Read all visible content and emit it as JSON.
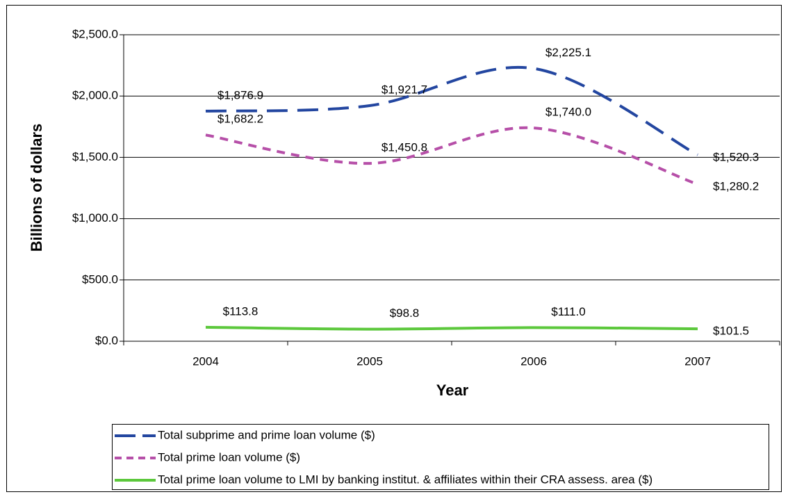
{
  "chart_data": {
    "type": "line",
    "xlabel": "Year",
    "ylabel": "Billions of dollars",
    "categories": [
      "2004",
      "2005",
      "2006",
      "2007"
    ],
    "series": [
      {
        "name": "Total subprime and prime loan volume ($)",
        "color": "#2346a0",
        "dash": "dashed",
        "values": [
          1876.9,
          1921.7,
          2225.1,
          1520.3
        ],
        "value_labels": [
          "$1,876.9",
          "$1,921.7",
          "$2,225.1",
          "$1,520.3"
        ]
      },
      {
        "name": "Total prime loan volume ($)",
        "color": "#b64fa8",
        "dash": "dotted",
        "values": [
          1682.2,
          1450.8,
          1740.0,
          1280.2
        ],
        "value_labels": [
          "$1,682.2",
          "$1,450.8",
          "$1,740.0",
          "$1,280.2"
        ]
      },
      {
        "name": "Total prime loan volume to LMI by banking institut. & affiliates within their CRA assess. area ($)",
        "color": "#5cc83c",
        "dash": "solid",
        "values": [
          113.8,
          98.8,
          111.0,
          101.5
        ],
        "value_labels": [
          "$113.8",
          "$98.8",
          "$111.0",
          "$101.5"
        ]
      }
    ],
    "ylim": [
      0,
      2500
    ],
    "yticks": [
      {
        "value": 0,
        "label": "$0.0"
      },
      {
        "value": 500,
        "label": "$500.0"
      },
      {
        "value": 1000,
        "label": "$1,000.0"
      },
      {
        "value": 1500,
        "label": "$1,500.0"
      },
      {
        "value": 2000,
        "label": "$2,000.0"
      },
      {
        "value": 2500,
        "label": "$2,500.0"
      }
    ],
    "grid": true,
    "legend": "bottom"
  }
}
